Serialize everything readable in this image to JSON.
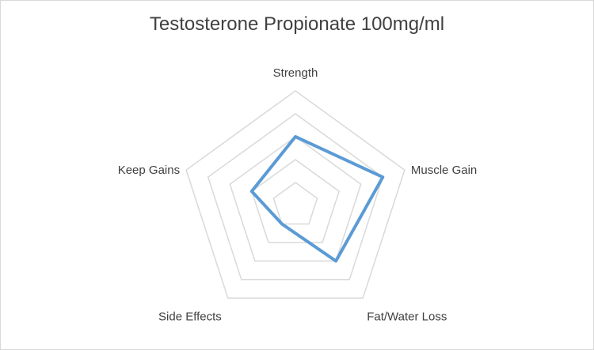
{
  "chart_data": {
    "type": "radar",
    "title": "Testosterone Propionate 100mg/ml",
    "categories": [
      "Strength",
      "Muscle Gain",
      "Fat/Water Loss",
      "Side Effects",
      "Keep Gains"
    ],
    "series": [
      {
        "values": [
          3,
          4,
          3,
          1,
          2
        ]
      }
    ],
    "rlim": [
      0,
      5
    ],
    "rings": 5,
    "line_color": "#5b9bd5",
    "grid_color": "#d9d9d9"
  }
}
